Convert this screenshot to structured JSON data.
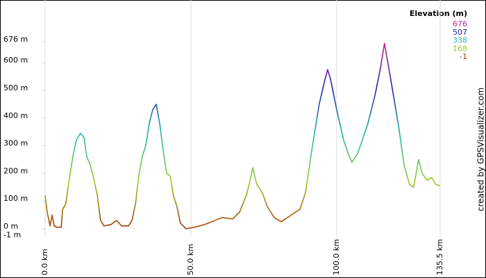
{
  "chart_data": {
    "type": "line",
    "title": "Elevation (m)",
    "credit": "created by GPSVisualizer.com",
    "x": [
      0,
      0.7,
      1.7,
      2.4,
      3.1,
      4,
      5.5,
      6,
      7.1,
      8.3,
      9.5,
      10.7,
      12.1,
      13.3,
      14.3,
      15.5,
      16.7,
      17.9,
      19,
      20.2,
      22.6,
      24.5,
      26.2,
      28.6,
      29.8,
      31,
      32.1,
      33.3,
      34.5,
      35.7,
      36.9,
      38.1,
      39.3,
      40.5,
      41.7,
      42.9,
      44,
      45.2,
      46.4,
      48.3,
      51.2,
      54.8,
      58.3,
      60.7,
      64.3,
      66.7,
      69,
      70.2,
      71.2,
      72.6,
      74.5,
      76.2,
      78.6,
      81,
      84.5,
      87.4,
      89.3,
      91.7,
      94,
      96,
      96.9,
      97.9,
      100,
      102.4,
      104,
      105.2,
      107.1,
      108.8,
      110.7,
      113.1,
      115,
      116.4,
      117.9,
      119.5,
      121.4,
      123.1,
      125,
      126.4,
      128.1,
      129.3,
      131,
      132.6,
      134,
      135.5
    ],
    "series": [
      {
        "name": "Elevation",
        "values": [
          120,
          60,
          10,
          50,
          10,
          5,
          5,
          70,
          90,
          180,
          260,
          320,
          345,
          330,
          260,
          230,
          180,
          120,
          30,
          10,
          15,
          30,
          10,
          10,
          30,
          90,
          190,
          260,
          300,
          380,
          430,
          450,
          380,
          280,
          200,
          190,
          120,
          80,
          20,
          0,
          5,
          15,
          30,
          40,
          35,
          60,
          120,
          170,
          220,
          160,
          130,
          80,
          40,
          25,
          50,
          70,
          130,
          300,
          450,
          540,
          575,
          540,
          430,
          320,
          270,
          240,
          270,
          320,
          380,
          480,
          580,
          670,
          580,
          480,
          360,
          230,
          160,
          150,
          250,
          200,
          175,
          185,
          160,
          155
        ]
      }
    ],
    "color_scale": [
      {
        "value": 676,
        "color": "#cc2299"
      },
      {
        "value": 507,
        "color": "#2222aa"
      },
      {
        "value": 338,
        "color": "#22bbaa"
      },
      {
        "value": 168,
        "color": "#99cc22"
      },
      {
        "value": -1,
        "color": "#aa3300"
      }
    ],
    "xlim": [
      0,
      135.5
    ],
    "xticks": [
      {
        "value": 0,
        "label": "0.0 km"
      },
      {
        "value": 50,
        "label": "50.0 km"
      },
      {
        "value": 100,
        "label": "100.0 km"
      },
      {
        "value": 135.5,
        "label": "135.5 km"
      }
    ],
    "ylim": [
      -1,
      676
    ],
    "yticks": [
      {
        "value": -1,
        "label": "-1 m"
      },
      {
        "value": 0,
        "label": "0 m"
      },
      {
        "value": 100,
        "label": "100 m"
      },
      {
        "value": 200,
        "label": "200 m"
      },
      {
        "value": 300,
        "label": "300 m"
      },
      {
        "value": 400,
        "label": "400 m"
      },
      {
        "value": 500,
        "label": "500 m"
      },
      {
        "value": 600,
        "label": "600 m"
      },
      {
        "value": 676,
        "label": "676 m"
      }
    ]
  }
}
